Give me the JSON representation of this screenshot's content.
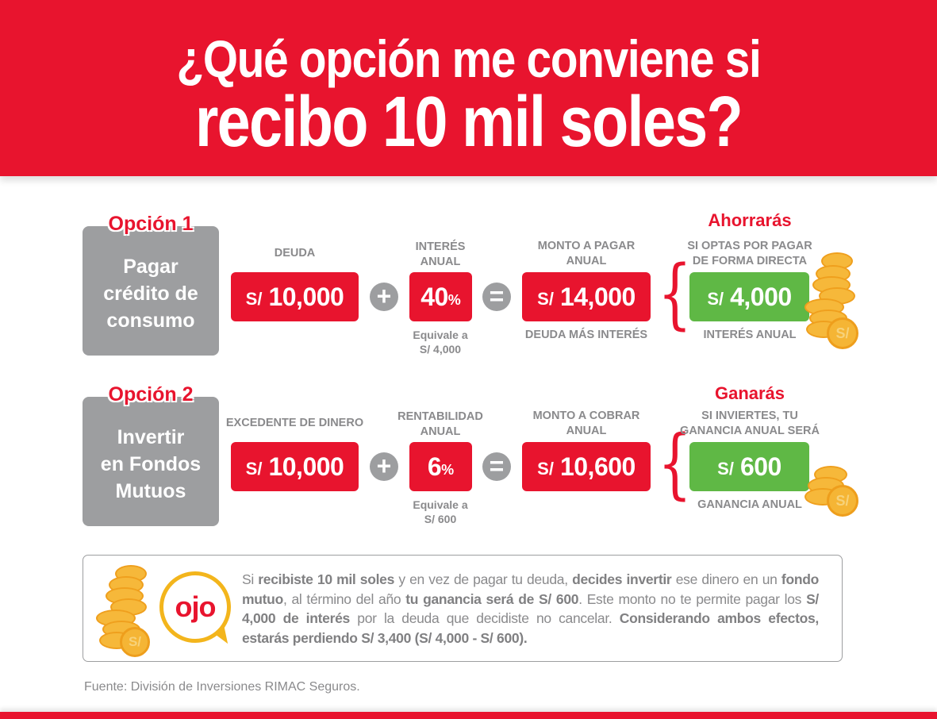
{
  "header": {
    "line1": "¿Qué opción me conviene si",
    "line2": "recibo 10 mil soles?"
  },
  "colors": {
    "brand_red": "#e8142e",
    "gray_box": "#9d9ea0",
    "green": "#5fb845",
    "coin_gold": "#f6b83a",
    "text_gray": "#8a8a8c"
  },
  "options": [
    {
      "tag": "Opción 1",
      "title_lines": [
        "Pagar",
        "crédito de",
        "consumo"
      ],
      "principal": {
        "label": "DEUDA",
        "currency": "S/",
        "amount": "10,000"
      },
      "operator_plus": "+",
      "rate": {
        "label_lines": [
          "INTERÉS",
          "ANUAL"
        ],
        "value": "40",
        "unit": "%",
        "note_lines": [
          "Equivale a",
          "S/ 4,000"
        ]
      },
      "operator_equals": "=",
      "total": {
        "label_lines": [
          "MONTO A PAGAR",
          "ANUAL"
        ],
        "currency": "S/",
        "amount": "14,000",
        "caption": "DEUDA MÁS INTERÉS"
      },
      "result": {
        "title": "Ahorrarás",
        "label_lines": [
          "SI OPTAS POR PAGAR",
          "DE FORMA DIRECTA"
        ],
        "currency": "S/",
        "amount": "4,000",
        "caption": "INTERÉS ANUAL"
      }
    },
    {
      "tag": "Opción 2",
      "title_lines": [
        "Invertir",
        "en Fondos",
        "Mutuos"
      ],
      "principal": {
        "label": "EXCEDENTE DE DINERO",
        "currency": "S/",
        "amount": "10,000"
      },
      "operator_plus": "+",
      "rate": {
        "label_lines": [
          "RENTABILIDAD",
          "ANUAL"
        ],
        "value": "6",
        "unit": "%",
        "note_lines": [
          "Equivale a",
          "S/ 600"
        ]
      },
      "operator_equals": "=",
      "total": {
        "label_lines": [
          "MONTO A COBRAR",
          "ANUAL"
        ],
        "currency": "S/",
        "amount": "10,600",
        "caption": ""
      },
      "result": {
        "title": "Ganarás",
        "label_lines": [
          "SI INVIERTES, TU",
          "GANANCIA ANUAL SERÁ"
        ],
        "currency": "S/",
        "amount": "600",
        "caption": "GANANCIA ANUAL"
      }
    }
  ],
  "note": {
    "badge": "ojo",
    "coin_symbol": "S/",
    "segments": [
      {
        "t": "Si ",
        "b": false
      },
      {
        "t": "recibiste 10 mil soles",
        "b": true
      },
      {
        "t": " y en vez de pagar tu deuda, ",
        "b": false
      },
      {
        "t": "decides invertir",
        "b": true
      },
      {
        "t": " ese dinero en un ",
        "b": false
      },
      {
        "t": "fondo mutuo",
        "b": true
      },
      {
        "t": ", al término del año ",
        "b": false
      },
      {
        "t": "tu ganancia será de S/ 600",
        "b": true
      },
      {
        "t": ". Este monto no te permite pagar los ",
        "b": false
      },
      {
        "t": "S/ 4,000 de interés",
        "b": true
      },
      {
        "t": " por la deuda que decidiste no cancelar. ",
        "b": false
      },
      {
        "t": "Considerando ambos efectos, estarás perdiendo S/ 3,400 (S/ 4,000 - S/ 600).",
        "b": true
      }
    ]
  },
  "footer": {
    "source": "Fuente: División de Inversiones RIMAC Seguros."
  }
}
